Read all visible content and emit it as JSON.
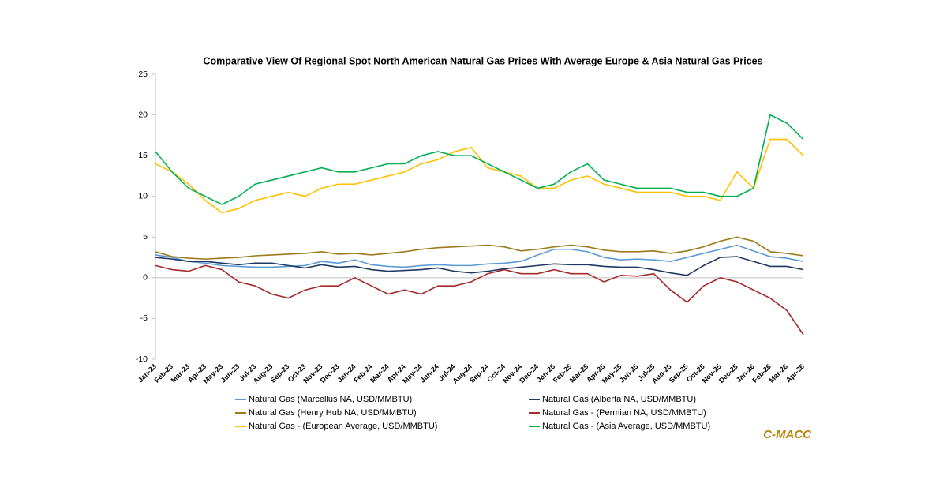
{
  "chart_data": {
    "type": "line",
    "title": "Comparative View Of Regional Spot North American Natural Gas Prices With Average Europe & Asia Natural Gas Prices",
    "watermark": "C-MACC",
    "categories": [
      "Jan-23",
      "Feb-23",
      "Mar-23",
      "Apr-23",
      "May-23",
      "Jun-23",
      "Jul-23",
      "Aug-23",
      "Sep-23",
      "Oct-23",
      "Nov-23",
      "Dec-23",
      "Jan-24",
      "Feb-24",
      "Mar-24",
      "Apr-24",
      "May-24",
      "Jun-24",
      "Jul-24",
      "Aug-24",
      "Sep-24",
      "Oct-24",
      "Nov-24",
      "Dec-24",
      "Jan-25",
      "Feb-25",
      "Mar-25",
      "Apr-25",
      "May-25",
      "Jun-25",
      "Jul-25",
      "Aug-25",
      "Sep-25",
      "Oct-25",
      "Nov-25",
      "Dec-25",
      "Jan-26",
      "Feb-26",
      "Mar-26",
      "Apr-26"
    ],
    "ylim": [
      -10,
      25
    ],
    "yticks": [
      -10,
      -5,
      0,
      5,
      10,
      15,
      20,
      25
    ],
    "grid": false,
    "series": [
      {
        "name": "Natural Gas (Marcellus NA, USD/MMBTU)",
        "color": "#5b9bd5",
        "values": [
          2.8,
          2.5,
          2,
          1.8,
          1.5,
          1.4,
          1.3,
          1.3,
          1.4,
          1.5,
          2,
          1.8,
          2.2,
          1.6,
          1.4,
          1.3,
          1.5,
          1.6,
          1.5,
          1.5,
          1.7,
          1.8,
          2,
          2.8,
          3.5,
          3.5,
          3.2,
          2.5,
          2.2,
          2.3,
          2.2,
          2,
          2.5,
          3,
          3.5,
          4,
          3.3,
          2.6,
          2.4,
          2
        ]
      },
      {
        "name": "Natural Gas (Alberta NA, USD/MMBTU)",
        "color": "#1f3864",
        "values": [
          2.5,
          2.3,
          2,
          2,
          1.8,
          1.6,
          1.8,
          1.8,
          1.5,
          1.2,
          1.6,
          1.3,
          1.4,
          1,
          0.8,
          0.9,
          1,
          1.2,
          0.8,
          0.6,
          0.8,
          1.1,
          1.3,
          1.5,
          1.7,
          1.6,
          1.6,
          1.4,
          1.3,
          1.3,
          1,
          0.6,
          0.3,
          1.5,
          2.5,
          2.6,
          2,
          1.4,
          1.4,
          1
        ]
      },
      {
        "name": "Natural Gas (Henry Hub NA, USD/MMBTU)",
        "color": "#9c7a1a",
        "values": [
          3.2,
          2.6,
          2.4,
          2.3,
          2.4,
          2.5,
          2.7,
          2.8,
          2.9,
          3,
          3.2,
          2.9,
          3,
          2.8,
          3,
          3.2,
          3.5,
          3.7,
          3.8,
          3.9,
          4,
          3.8,
          3.3,
          3.5,
          3.8,
          4,
          3.8,
          3.4,
          3.2,
          3.2,
          3.3,
          3,
          3.3,
          3.8,
          4.5,
          5,
          4.5,
          3.2,
          3,
          2.7
        ]
      },
      {
        "name": "Natural Gas - (Permian NA, USD/MMBTU)",
        "color": "#a52a2a",
        "values": [
          1.5,
          1,
          0.8,
          1.5,
          1,
          -0.5,
          -1,
          -2,
          -2.5,
          -1.5,
          -1,
          -1,
          0,
          -1,
          -2,
          -1.5,
          -2,
          -1,
          -1,
          -0.5,
          0.5,
          1,
          0.5,
          0.5,
          1,
          0.5,
          0.5,
          -0.5,
          0.3,
          0.2,
          0.5,
          -1.5,
          -3,
          -1,
          0,
          -0.5,
          -1.5,
          -2.5,
          -4,
          -7
        ]
      },
      {
        "name": "Natural Gas - (European Average, USD/MMBTU)",
        "color": "#ffc000",
        "values": [
          14,
          13,
          11.5,
          9.5,
          8,
          8.5,
          9.5,
          10,
          10.5,
          10,
          11,
          11.5,
          11.5,
          12,
          12.5,
          13,
          14,
          14.5,
          15.5,
          16,
          13.5,
          13,
          12.5,
          11,
          11,
          12,
          12.5,
          11.5,
          11,
          10.5,
          10.5,
          10.5,
          10,
          10,
          9.5,
          13,
          11,
          17,
          17,
          15
        ]
      },
      {
        "name": "Natural Gas - (Asia Average, USD/MMBTU)",
        "color": "#00b050",
        "values": [
          15.5,
          13,
          11,
          10,
          9,
          10,
          11.5,
          12,
          12.5,
          13,
          13.5,
          13,
          13,
          13.5,
          14,
          14,
          15,
          15.5,
          15,
          15,
          14,
          13,
          12,
          11,
          11.5,
          13,
          14,
          12,
          11.5,
          11,
          11,
          11,
          10.5,
          10.5,
          10,
          10,
          11,
          20,
          19,
          17
        ]
      }
    ]
  }
}
